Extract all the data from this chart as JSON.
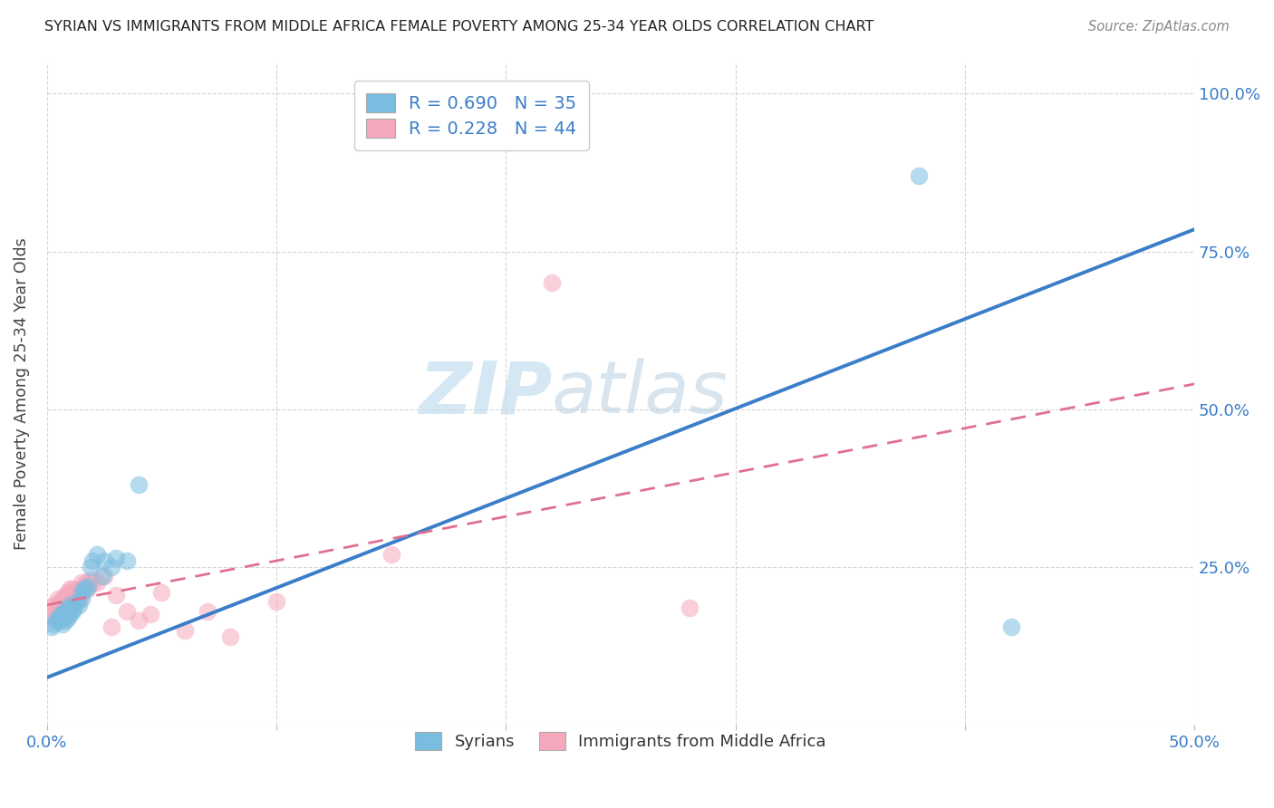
{
  "title": "SYRIAN VS IMMIGRANTS FROM MIDDLE AFRICA FEMALE POVERTY AMONG 25-34 YEAR OLDS CORRELATION CHART",
  "source": "Source: ZipAtlas.com",
  "ylabel_label": "Female Poverty Among 25-34 Year Olds",
  "xlim": [
    0.0,
    0.5
  ],
  "ylim": [
    0.0,
    1.05
  ],
  "xtick_positions": [
    0.0,
    0.1,
    0.2,
    0.3,
    0.4,
    0.5
  ],
  "xtick_labels": [
    "0.0%",
    "",
    "",
    "",
    "",
    "50.0%"
  ],
  "ytick_vals": [
    0.0,
    0.25,
    0.5,
    0.75,
    1.0
  ],
  "ytick_labels": [
    "",
    "25.0%",
    "50.0%",
    "75.0%",
    "100.0%"
  ],
  "watermark_zip": "ZIP",
  "watermark_atlas": "atlas",
  "legend_label1": "R = 0.690   N = 35",
  "legend_label2": "R = 0.228   N = 44",
  "legend_bottom1": "Syrians",
  "legend_bottom2": "Immigrants from Middle Africa",
  "blue_scatter_color": "#7bbde0",
  "pink_scatter_color": "#f5a8bc",
  "blue_line_color": "#3a7dc9",
  "pink_line_color": "#e07090",
  "axis_color": "#3a7dc9",
  "grid_color": "#cccccc",
  "title_color": "#222222",
  "source_color": "#888888",
  "watermark_color": "#c5ddf0",
  "syrians_x": [
    0.002,
    0.003,
    0.004,
    0.005,
    0.006,
    0.006,
    0.007,
    0.007,
    0.008,
    0.008,
    0.009,
    0.009,
    0.01,
    0.01,
    0.011,
    0.011,
    0.012,
    0.013,
    0.014,
    0.015,
    0.015,
    0.016,
    0.017,
    0.018,
    0.019,
    0.02,
    0.022,
    0.024,
    0.025,
    0.028,
    0.03,
    0.035,
    0.04,
    0.38,
    0.42
  ],
  "syrians_y": [
    0.155,
    0.16,
    0.165,
    0.17,
    0.175,
    0.165,
    0.16,
    0.175,
    0.165,
    0.18,
    0.17,
    0.185,
    0.175,
    0.19,
    0.18,
    0.185,
    0.185,
    0.195,
    0.19,
    0.2,
    0.21,
    0.215,
    0.215,
    0.22,
    0.25,
    0.26,
    0.27,
    0.235,
    0.26,
    0.25,
    0.265,
    0.26,
    0.38,
    0.87,
    0.155
  ],
  "africa_x": [
    0.001,
    0.002,
    0.003,
    0.003,
    0.004,
    0.005,
    0.005,
    0.006,
    0.006,
    0.007,
    0.007,
    0.008,
    0.008,
    0.009,
    0.009,
    0.01,
    0.01,
    0.011,
    0.011,
    0.012,
    0.013,
    0.014,
    0.015,
    0.015,
    0.016,
    0.017,
    0.018,
    0.019,
    0.02,
    0.022,
    0.025,
    0.028,
    0.03,
    0.035,
    0.04,
    0.045,
    0.05,
    0.06,
    0.07,
    0.08,
    0.1,
    0.15,
    0.22,
    0.28
  ],
  "africa_y": [
    0.175,
    0.185,
    0.17,
    0.19,
    0.18,
    0.185,
    0.2,
    0.175,
    0.195,
    0.18,
    0.2,
    0.185,
    0.205,
    0.175,
    0.21,
    0.185,
    0.215,
    0.19,
    0.215,
    0.195,
    0.2,
    0.215,
    0.205,
    0.225,
    0.22,
    0.225,
    0.215,
    0.23,
    0.225,
    0.225,
    0.235,
    0.155,
    0.205,
    0.18,
    0.165,
    0.175,
    0.21,
    0.15,
    0.18,
    0.14,
    0.195,
    0.27,
    0.7,
    0.185
  ],
  "blue_trend_x": [
    0.0,
    0.5
  ],
  "blue_trend_y": [
    0.075,
    0.785
  ],
  "pink_trend_x": [
    0.0,
    0.5
  ],
  "pink_trend_y": [
    0.19,
    0.54
  ]
}
